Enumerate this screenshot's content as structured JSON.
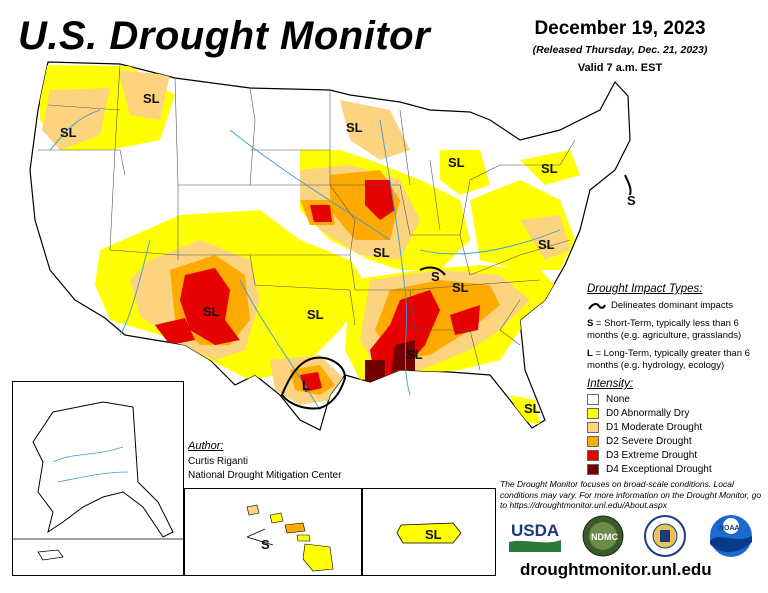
{
  "title": "U.S. Drought Monitor",
  "date": "December 19, 2023",
  "released": "(Released Thursday, Dec. 21, 2023)",
  "valid": "Valid 7 a.m. EST",
  "impact_types": {
    "title": "Drought Impact Types:",
    "line_desc": "Delineates dominant impacts",
    "short_term_code": "S",
    "short_term_desc": "= Short-Term, typically less than 6 months (e.g. agriculture, grasslands)",
    "long_term_code": "L",
    "long_term_desc": "= Long-Term, typically greater than 6 months (e.g. hydrology, ecology)"
  },
  "intensity": {
    "title": "Intensity:",
    "levels": [
      {
        "label": "None",
        "color": "#ffffff"
      },
      {
        "label": "D0 Abnormally Dry",
        "color": "#ffff00"
      },
      {
        "label": "D1 Moderate Drought",
        "color": "#fcd37f"
      },
      {
        "label": "D2 Severe Drought",
        "color": "#ffaa00"
      },
      {
        "label": "D3 Extreme Drought",
        "color": "#e60000"
      },
      {
        "label": "D4 Exceptional Drought",
        "color": "#730000"
      }
    ]
  },
  "author": {
    "label": "Author:",
    "name": "Curtis Riganti",
    "org": "National Drought Mitigation Center"
  },
  "disclaimer": "The Drought Monitor focuses on broad-scale conditions. Local conditions may vary. For more information on the Drought Monitor, go to https://droughtmonitor.unl.edu/About.aspx",
  "website": "droughtmonitor.unl.edu",
  "map_labels": {
    "pnw": "SL",
    "mt": "SL",
    "mn": "SL",
    "mi": "SL",
    "ny": "SL",
    "ne": "S",
    "ia": "SL",
    "in": "S",
    "ky": "SL",
    "va": "SL",
    "az": "SL",
    "ok": "SL",
    "tx": "L",
    "ms": "SL",
    "fl": "SL",
    "hi": "S",
    "pr": "SL"
  },
  "logos": {
    "usda": "USDA",
    "ndmc": "NDMC",
    "noaa": "NOAA"
  }
}
